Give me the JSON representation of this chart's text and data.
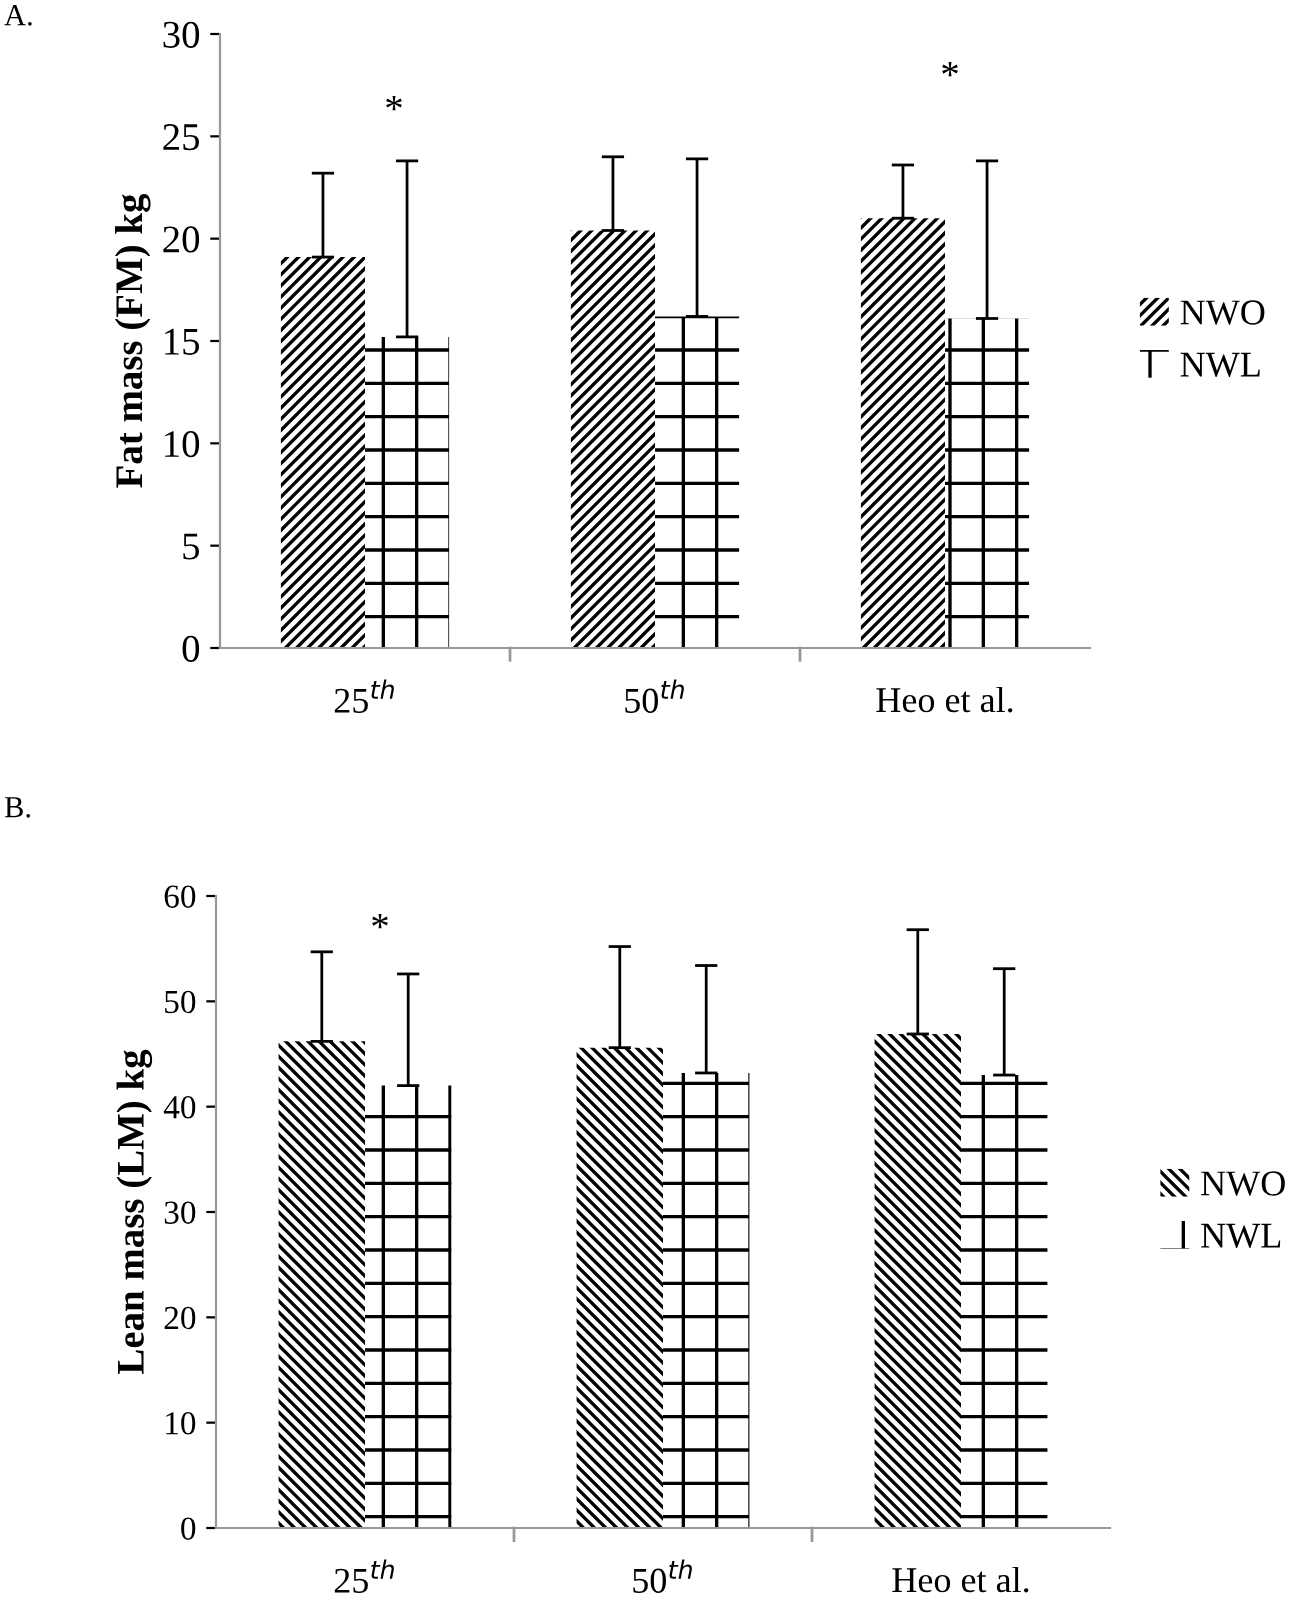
{
  "chart_data": [
    {
      "type": "bar",
      "categories": [
        "25$^{th}$",
        "50$^{th}$",
        "Heo et al."
      ],
      "ylabel": "Fat mass (FM) kg",
      "ylim": [
        0,
        30
      ],
      "yticks": [
        0,
        5,
        10,
        15,
        20,
        25,
        30
      ],
      "grid": false,
      "legend": "right",
      "series": [
        {
          "name": "NWO",
          "color": "#000000",
          "values": [
            19.1,
            20.4,
            21.0
          ],
          "errors": [
            [
              19.1,
              23.2
            ],
            [
              20.4,
              24.0
            ],
            [
              21.0,
              23.6
            ]
          ]
        },
        {
          "name": "NWL",
          "color": "#000000",
          "values": [
            15.2,
            16.2,
            16.1
          ],
          "errors": [
            [
              15.2,
              23.8
            ],
            [
              16.2,
              23.9
            ],
            [
              16.1,
              23.8
            ]
          ]
        }
      ],
      "annotations": [
        "A.",
        "*",
        "*"
      ]
    },
    {
      "type": "bar",
      "categories": [
        "25$^{th}$",
        "50$^{th}$",
        "Heo et al."
      ],
      "ylabel": "Lean mass (LM) kg",
      "ylim": [
        0,
        60
      ],
      "yticks": [
        0,
        10,
        20,
        30,
        40,
        50,
        60
      ],
      "grid": false,
      "legend": "right",
      "series": [
        {
          "name": "NWO",
          "color": "#000000",
          "values": [
            46.2,
            45.6,
            46.9
          ],
          "errors": [
            [
              46.2,
              54.7
            ],
            [
              45.6,
              55.2
            ],
            [
              46.9,
              56.8
            ]
          ]
        },
        {
          "name": "NWL",
          "color": "#000000",
          "values": [
            42.0,
            43.2,
            43.0
          ],
          "errors": [
            [
              42.0,
              52.6
            ],
            [
              43.2,
              53.4
            ],
            [
              43.0,
              53.1
            ]
          ]
        }
      ],
      "annotations": [
        "B.",
        "*"
      ]
    }
  ]
}
